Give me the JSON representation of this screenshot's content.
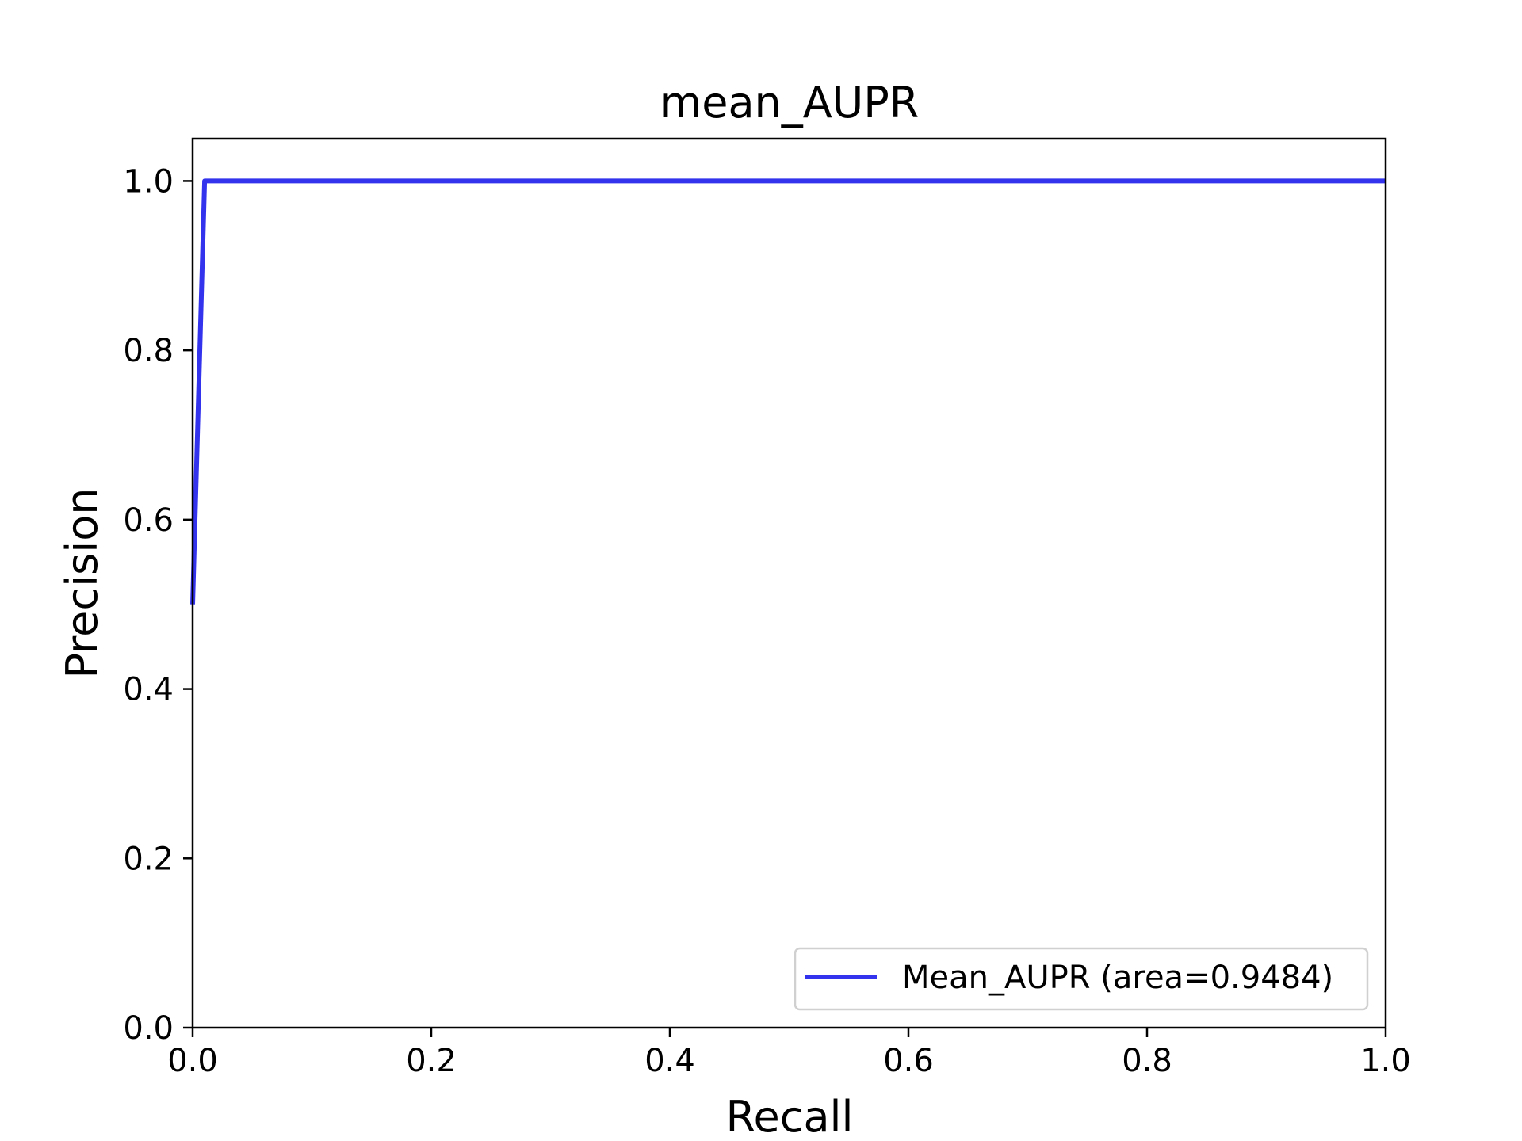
{
  "chart_data": {
    "type": "line",
    "title": "mean_AUPR",
    "xlabel": "Recall",
    "ylabel": "Precision",
    "xlim": [
      0.0,
      1.0
    ],
    "ylim": [
      0.0,
      1.05
    ],
    "x_ticks": [
      "0.0",
      "0.2",
      "0.4",
      "0.6",
      "0.8",
      "1.0"
    ],
    "y_ticks": [
      "0.0",
      "0.2",
      "0.4",
      "0.6",
      "0.8",
      "1.0"
    ],
    "grid": false,
    "legend_position": "lower-right",
    "series": [
      {
        "name": "Mean_AUPR (area=0.9484)",
        "color": "#3333ee",
        "x": [
          0.0,
          0.01,
          0.02,
          0.2,
          0.4,
          0.6,
          0.8,
          1.0
        ],
        "y": [
          0.5,
          1.0,
          1.0,
          1.0,
          1.0,
          1.0,
          1.0,
          1.0
        ]
      }
    ]
  }
}
